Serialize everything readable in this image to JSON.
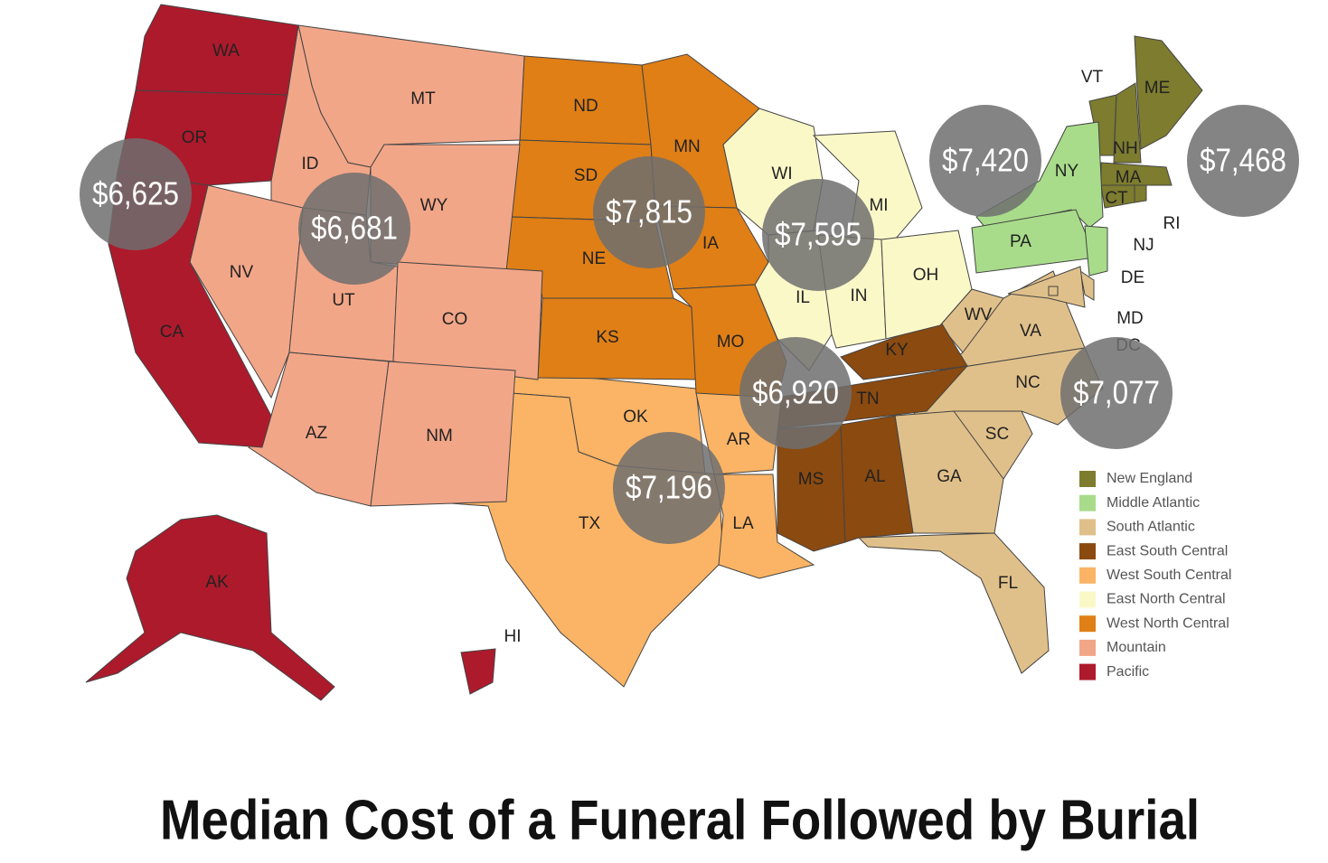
{
  "title": "Median Cost of a Funeral Followed by Burial",
  "regions": [
    {
      "name": "New England",
      "color": "#7d7c2f",
      "value": 7468,
      "value_label": "$7,468",
      "states": [
        "ME",
        "VT",
        "NH",
        "MA",
        "CT",
        "RI"
      ]
    },
    {
      "name": "Middle Atlantic",
      "color": "#a8dc8a",
      "value": 7420,
      "value_label": "$7,420",
      "states": [
        "NY",
        "PA",
        "NJ"
      ]
    },
    {
      "name": "South Atlantic",
      "color": "#e0c08a",
      "value": 7077,
      "value_label": "$7,077",
      "states": [
        "WV",
        "VA",
        "NC",
        "SC",
        "GA",
        "FL",
        "DE",
        "MD",
        "DC"
      ]
    },
    {
      "name": "East South Central",
      "color": "#8b4a10",
      "value": 6920,
      "value_label": "$6,920",
      "states": [
        "KY",
        "TN",
        "MS",
        "AL"
      ]
    },
    {
      "name": "West South Central",
      "color": "#fbb465",
      "value": 7196,
      "value_label": "$7,196",
      "states": [
        "OK",
        "TX",
        "AR",
        "LA"
      ]
    },
    {
      "name": "East North Central",
      "color": "#fbf8c8",
      "value": 7595,
      "value_label": "$7,595",
      "states": [
        "WI",
        "MI",
        "IL",
        "IN",
        "OH"
      ]
    },
    {
      "name": "West North Central",
      "color": "#df7f16",
      "value": 7815,
      "value_label": "$7,815",
      "states": [
        "ND",
        "SD",
        "NE",
        "KS",
        "MN",
        "IA",
        "MO"
      ]
    },
    {
      "name": "Mountain",
      "color": "#f2a688",
      "value": 6681,
      "value_label": "$6,681",
      "states": [
        "MT",
        "ID",
        "WY",
        "NV",
        "UT",
        "CO",
        "AZ",
        "NM"
      ]
    },
    {
      "name": "Pacific",
      "color": "#ad1a2c",
      "value": 6625,
      "value_label": "$6,625",
      "states": [
        "WA",
        "OR",
        "CA",
        "AK",
        "HI"
      ]
    }
  ]
}
